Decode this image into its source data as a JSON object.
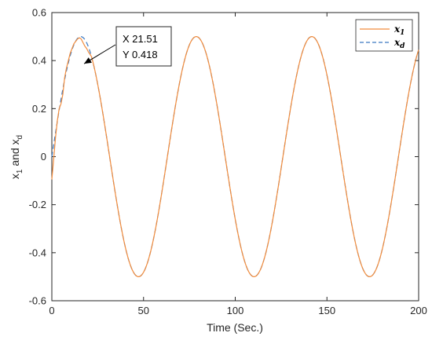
{
  "chart_data": {
    "type": "line",
    "title": "",
    "xlabel": "Time (Sec.)",
    "ylabel": {
      "main": "x",
      "sub1": "1",
      "middle": " and x",
      "sub2": "d"
    },
    "xlim": [
      0,
      200
    ],
    "ylim": [
      -0.6,
      0.6
    ],
    "xticks": [
      "0",
      "50",
      "100",
      "150",
      "200"
    ],
    "yticks": [
      "-0.6",
      "-0.4",
      "-0.2",
      "0",
      "0.2",
      "0.4",
      "0.6"
    ],
    "grid": false,
    "legend_position": "top-right",
    "series": [
      {
        "name": "x1",
        "label_main": "x",
        "label_sub": "1",
        "color": "#f28c3c",
        "style": "solid",
        "x": [
          0,
          1,
          2,
          3,
          4,
          5,
          6,
          7,
          8,
          9,
          10,
          11,
          12,
          13,
          14,
          15,
          16,
          17,
          18,
          19,
          20,
          21.51
        ],
        "y": [
          -0.095,
          -0.01,
          0.08,
          0.15,
          0.2,
          0.22,
          0.26,
          0.33,
          0.37,
          0.4,
          0.43,
          0.45,
          0.47,
          0.48,
          0.49,
          0.495,
          0.49,
          0.475,
          0.46,
          0.45,
          0.435,
          0.418
        ]
      },
      {
        "name": "xd",
        "label_main": "x",
        "label_sub": "d",
        "color": "#3b78c0",
        "style": "dashed",
        "function": "0.5*sin(2*pi*t/63)",
        "period": 63,
        "amplitude": 0.5
      }
    ],
    "annotation": {
      "x_line": "X 21.51",
      "y_line": "Y 0.418",
      "point": [
        21.51,
        0.418
      ]
    }
  }
}
